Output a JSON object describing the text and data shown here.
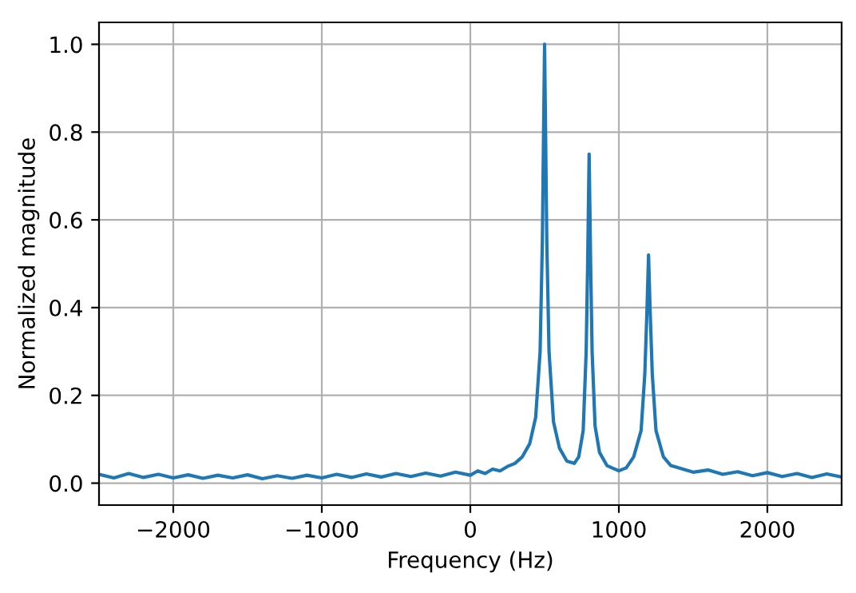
{
  "chart_data": {
    "type": "line",
    "xlabel": "Frequency (Hz)",
    "ylabel": "Normalized magnitude",
    "xlim": [
      -2500,
      2500
    ],
    "ylim": [
      -0.05,
      1.05
    ],
    "xticks": [
      {
        "value": -2000,
        "label": "−2000"
      },
      {
        "value": -1000,
        "label": "−1000"
      },
      0,
      1000,
      2000
    ],
    "yticks": [
      {
        "value": 0,
        "label": "0.0"
      },
      0.2,
      0.4,
      0.6,
      0.8,
      {
        "value": 1,
        "label": "1.0"
      }
    ],
    "grid": true,
    "series": [
      {
        "color": "#1f77b4",
        "x": [
          -2500,
          -2400,
          -2300,
          -2200,
          -2100,
          -2000,
          -1900,
          -1800,
          -1700,
          -1600,
          -1500,
          -1400,
          -1300,
          -1200,
          -1100,
          -1000,
          -900,
          -800,
          -700,
          -600,
          -500,
          -400,
          -300,
          -200,
          -100,
          0,
          50,
          100,
          150,
          200,
          250,
          300,
          350,
          400,
          440,
          470,
          485,
          495,
          500,
          505,
          515,
          530,
          560,
          600,
          650,
          700,
          730,
          760,
          780,
          790,
          800,
          810,
          820,
          840,
          870,
          920,
          1000,
          1050,
          1100,
          1150,
          1175,
          1190,
          1200,
          1210,
          1225,
          1250,
          1300,
          1350,
          1400,
          1500,
          1600,
          1700,
          1800,
          1900,
          2000,
          2100,
          2200,
          2300,
          2400,
          2500
        ],
        "values": [
          0.02,
          0.012,
          0.022,
          0.013,
          0.02,
          0.012,
          0.019,
          0.011,
          0.018,
          0.012,
          0.019,
          0.01,
          0.017,
          0.011,
          0.018,
          0.012,
          0.02,
          0.013,
          0.021,
          0.014,
          0.022,
          0.015,
          0.023,
          0.016,
          0.025,
          0.018,
          0.028,
          0.022,
          0.032,
          0.028,
          0.038,
          0.045,
          0.06,
          0.09,
          0.15,
          0.3,
          0.55,
          0.85,
          1.0,
          0.85,
          0.55,
          0.3,
          0.14,
          0.08,
          0.05,
          0.045,
          0.06,
          0.12,
          0.3,
          0.5,
          0.75,
          0.5,
          0.3,
          0.13,
          0.07,
          0.04,
          0.028,
          0.035,
          0.06,
          0.12,
          0.25,
          0.4,
          0.52,
          0.4,
          0.25,
          0.12,
          0.06,
          0.04,
          0.035,
          0.025,
          0.03,
          0.02,
          0.026,
          0.017,
          0.024,
          0.015,
          0.022,
          0.013,
          0.021,
          0.014
        ]
      }
    ]
  }
}
